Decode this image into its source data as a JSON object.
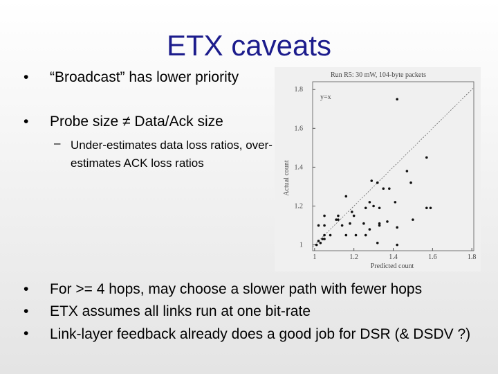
{
  "title": "ETX caveats",
  "bullets_top": [
    "“Broadcast” has lower priority",
    "Probe size ≠ Data/Ack size"
  ],
  "sub_bullets": [
    "Under-estimates data loss ratios, over-estimates ACK loss ratios"
  ],
  "bullets_bottom": [
    "For >= 4 hops, may choose a slower path with fewer hops",
    "ETX assumes all links run at one bit-rate",
    "Link-layer feedback already does a good job for DSR (& DSDV ?)"
  ],
  "chart": {
    "type": "scatter",
    "title": "Run R5: 30 mW, 104-byte packets",
    "xlabel": "Predicted count",
    "ylabel": "Actual count",
    "annotation": "y=x",
    "x": [
      1.42,
      1.47,
      1.29,
      1.57,
      1.49,
      1.32,
      1.35,
      1.38,
      1.16,
      1.28,
      1.3,
      1.33,
      1.41,
      1.57,
      1.59,
      1.26,
      1.05,
      1.11,
      1.19,
      1.2,
      1.12,
      1.02,
      1.05,
      1.14,
      1.18,
      1.25,
      1.33,
      1.37,
      1.5,
      1.28,
      1.33,
      1.21,
      1.26,
      1.08,
      1.05,
      1.04,
      1.02,
      1.03,
      1.01,
      1.05,
      1.16,
      1.32,
      1.42,
      1.42,
      1.12
    ],
    "y": [
      1.75,
      1.38,
      1.33,
      1.45,
      1.32,
      1.32,
      1.29,
      1.29,
      1.25,
      1.22,
      1.2,
      1.19,
      1.22,
      1.19,
      1.19,
      1.19,
      1.15,
      1.13,
      1.17,
      1.15,
      1.13,
      1.1,
      1.1,
      1.1,
      1.11,
      1.11,
      1.11,
      1.12,
      1.13,
      1.08,
      1.1,
      1.05,
      1.05,
      1.05,
      1.05,
      1.03,
      1.02,
      1.01,
      1.0,
      1.03,
      1.05,
      1.01,
      1.0,
      1.09,
      1.15
    ],
    "xlim": [
      0.99,
      1.81
    ],
    "ylim": [
      0.97,
      1.84
    ],
    "xticks": [
      1,
      1.2,
      1.4,
      1.6,
      1.8
    ],
    "yticks": [
      1,
      1.2,
      1.4,
      1.6,
      1.8
    ]
  }
}
